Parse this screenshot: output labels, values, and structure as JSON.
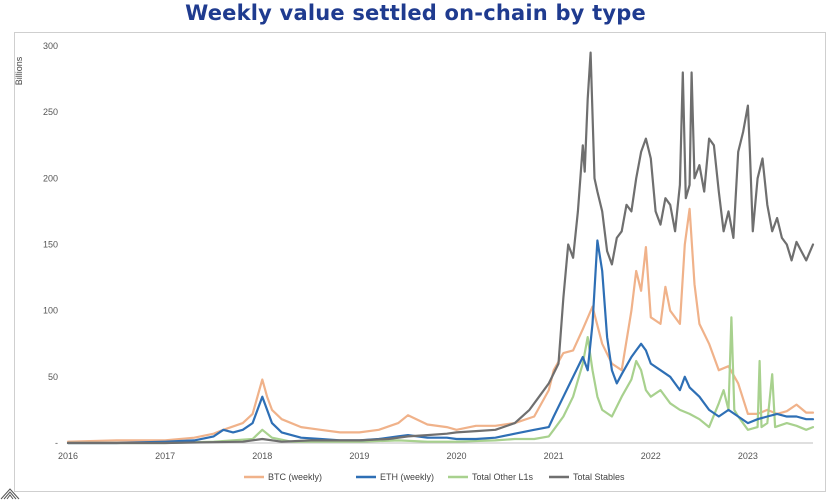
{
  "chart_data": {
    "type": "line",
    "title": "Weekly value settled on-chain by type",
    "xlabel": "",
    "ylabel": "Billions",
    "xlim": [
      2016.0,
      2023.67
    ],
    "ylim": [
      0,
      300
    ],
    "yticks": [
      "300",
      "250",
      "200",
      "150",
      "100",
      "50",
      "-"
    ],
    "ytick_values": [
      300,
      250,
      200,
      150,
      100,
      50,
      0
    ],
    "xticks": [
      "2016",
      "2017",
      "2018",
      "2019",
      "2020",
      "2021",
      "2022",
      "2023"
    ],
    "xtick_values": [
      2016,
      2017,
      2018,
      2019,
      2020,
      2021,
      2022,
      2023
    ],
    "legend_position": "bottom",
    "series": [
      {
        "name": "BTC (weekly)",
        "color": "#f0b28a",
        "points": [
          [
            2016.0,
            1
          ],
          [
            2016.5,
            2
          ],
          [
            2017.0,
            2
          ],
          [
            2017.3,
            4
          ],
          [
            2017.5,
            7
          ],
          [
            2017.6,
            10
          ],
          [
            2017.8,
            15
          ],
          [
            2017.9,
            22
          ],
          [
            2018.0,
            48
          ],
          [
            2018.05,
            35
          ],
          [
            2018.1,
            25
          ],
          [
            2018.2,
            18
          ],
          [
            2018.4,
            12
          ],
          [
            2018.6,
            10
          ],
          [
            2018.8,
            8
          ],
          [
            2019.0,
            8
          ],
          [
            2019.2,
            10
          ],
          [
            2019.4,
            15
          ],
          [
            2019.5,
            21
          ],
          [
            2019.7,
            14
          ],
          [
            2019.9,
            12
          ],
          [
            2020.0,
            10
          ],
          [
            2020.2,
            13
          ],
          [
            2020.4,
            13
          ],
          [
            2020.6,
            15
          ],
          [
            2020.8,
            20
          ],
          [
            2020.95,
            40
          ],
          [
            2021.0,
            55
          ],
          [
            2021.1,
            68
          ],
          [
            2021.2,
            70
          ],
          [
            2021.3,
            86
          ],
          [
            2021.4,
            103
          ],
          [
            2021.5,
            75
          ],
          [
            2021.6,
            60
          ],
          [
            2021.7,
            55
          ],
          [
            2021.8,
            100
          ],
          [
            2021.85,
            130
          ],
          [
            2021.9,
            115
          ],
          [
            2021.95,
            148
          ],
          [
            2022.0,
            95
          ],
          [
            2022.1,
            90
          ],
          [
            2022.15,
            118
          ],
          [
            2022.2,
            100
          ],
          [
            2022.3,
            90
          ],
          [
            2022.35,
            150
          ],
          [
            2022.4,
            177
          ],
          [
            2022.45,
            120
          ],
          [
            2022.5,
            90
          ],
          [
            2022.6,
            75
          ],
          [
            2022.7,
            55
          ],
          [
            2022.8,
            58
          ],
          [
            2022.9,
            45
          ],
          [
            2023.0,
            22
          ],
          [
            2023.1,
            22
          ],
          [
            2023.2,
            25
          ],
          [
            2023.3,
            22
          ],
          [
            2023.4,
            24
          ],
          [
            2023.5,
            29
          ],
          [
            2023.6,
            23
          ],
          [
            2023.67,
            23
          ]
        ]
      },
      {
        "name": "ETH (weekly)",
        "color": "#2e6fb5",
        "points": [
          [
            2016.0,
            0
          ],
          [
            2016.5,
            0
          ],
          [
            2017.0,
            1
          ],
          [
            2017.3,
            2
          ],
          [
            2017.5,
            5
          ],
          [
            2017.6,
            10
          ],
          [
            2017.7,
            8
          ],
          [
            2017.8,
            10
          ],
          [
            2017.9,
            15
          ],
          [
            2018.0,
            35
          ],
          [
            2018.1,
            15
          ],
          [
            2018.2,
            8
          ],
          [
            2018.4,
            4
          ],
          [
            2018.6,
            3
          ],
          [
            2018.8,
            2
          ],
          [
            2019.0,
            2
          ],
          [
            2019.2,
            3
          ],
          [
            2019.4,
            5
          ],
          [
            2019.5,
            6
          ],
          [
            2019.7,
            4
          ],
          [
            2019.9,
            4
          ],
          [
            2020.0,
            3
          ],
          [
            2020.2,
            3
          ],
          [
            2020.4,
            4
          ],
          [
            2020.6,
            7
          ],
          [
            2020.8,
            10
          ],
          [
            2020.95,
            12
          ],
          [
            2021.0,
            20
          ],
          [
            2021.1,
            35
          ],
          [
            2021.2,
            50
          ],
          [
            2021.3,
            65
          ],
          [
            2021.35,
            55
          ],
          [
            2021.4,
            90
          ],
          [
            2021.45,
            153
          ],
          [
            2021.5,
            130
          ],
          [
            2021.55,
            80
          ],
          [
            2021.6,
            55
          ],
          [
            2021.65,
            45
          ],
          [
            2021.7,
            52
          ],
          [
            2021.8,
            65
          ],
          [
            2021.85,
            70
          ],
          [
            2021.9,
            75
          ],
          [
            2021.95,
            70
          ],
          [
            2022.0,
            60
          ],
          [
            2022.1,
            55
          ],
          [
            2022.2,
            50
          ],
          [
            2022.3,
            40
          ],
          [
            2022.35,
            50
          ],
          [
            2022.4,
            42
          ],
          [
            2022.5,
            35
          ],
          [
            2022.6,
            25
          ],
          [
            2022.7,
            20
          ],
          [
            2022.8,
            25
          ],
          [
            2022.9,
            20
          ],
          [
            2023.0,
            15
          ],
          [
            2023.1,
            18
          ],
          [
            2023.2,
            20
          ],
          [
            2023.3,
            22
          ],
          [
            2023.4,
            20
          ],
          [
            2023.5,
            20
          ],
          [
            2023.6,
            18
          ],
          [
            2023.67,
            18
          ]
        ]
      },
      {
        "name": "Total Other L1s",
        "color": "#a8d18e",
        "points": [
          [
            2016.0,
            0
          ],
          [
            2017.0,
            0
          ],
          [
            2017.5,
            1
          ],
          [
            2017.9,
            3
          ],
          [
            2018.0,
            10
          ],
          [
            2018.1,
            4
          ],
          [
            2018.3,
            1
          ],
          [
            2019.0,
            1
          ],
          [
            2019.4,
            2
          ],
          [
            2019.7,
            1
          ],
          [
            2020.0,
            1
          ],
          [
            2020.4,
            2
          ],
          [
            2020.6,
            3
          ],
          [
            2020.8,
            3
          ],
          [
            2020.95,
            5
          ],
          [
            2021.0,
            10
          ],
          [
            2021.1,
            20
          ],
          [
            2021.2,
            35
          ],
          [
            2021.3,
            60
          ],
          [
            2021.35,
            80
          ],
          [
            2021.4,
            55
          ],
          [
            2021.45,
            35
          ],
          [
            2021.5,
            25
          ],
          [
            2021.6,
            20
          ],
          [
            2021.7,
            35
          ],
          [
            2021.8,
            48
          ],
          [
            2021.85,
            62
          ],
          [
            2021.9,
            55
          ],
          [
            2021.95,
            40
          ],
          [
            2022.0,
            35
          ],
          [
            2022.1,
            40
          ],
          [
            2022.2,
            30
          ],
          [
            2022.3,
            25
          ],
          [
            2022.4,
            22
          ],
          [
            2022.5,
            18
          ],
          [
            2022.6,
            12
          ],
          [
            2022.7,
            30
          ],
          [
            2022.75,
            40
          ],
          [
            2022.8,
            25
          ],
          [
            2022.83,
            95
          ],
          [
            2022.86,
            25
          ],
          [
            2022.9,
            20
          ],
          [
            2023.0,
            10
          ],
          [
            2023.1,
            12
          ],
          [
            2023.12,
            62
          ],
          [
            2023.14,
            12
          ],
          [
            2023.2,
            15
          ],
          [
            2023.25,
            52
          ],
          [
            2023.28,
            12
          ],
          [
            2023.4,
            15
          ],
          [
            2023.5,
            13
          ],
          [
            2023.6,
            10
          ],
          [
            2023.67,
            12
          ]
        ]
      },
      {
        "name": "Total Stables",
        "color": "#6f6f6f",
        "points": [
          [
            2016.0,
            0
          ],
          [
            2017.0,
            0
          ],
          [
            2017.8,
            1
          ],
          [
            2018.0,
            3
          ],
          [
            2018.2,
            1
          ],
          [
            2018.5,
            2
          ],
          [
            2018.8,
            2
          ],
          [
            2019.0,
            2
          ],
          [
            2019.3,
            3
          ],
          [
            2019.5,
            5
          ],
          [
            2019.7,
            6
          ],
          [
            2019.9,
            7
          ],
          [
            2020.0,
            8
          ],
          [
            2020.2,
            9
          ],
          [
            2020.4,
            10
          ],
          [
            2020.6,
            15
          ],
          [
            2020.75,
            25
          ],
          [
            2020.85,
            35
          ],
          [
            2020.95,
            45
          ],
          [
            2021.05,
            60
          ],
          [
            2021.1,
            110
          ],
          [
            2021.15,
            150
          ],
          [
            2021.2,
            140
          ],
          [
            2021.25,
            175
          ],
          [
            2021.3,
            225
          ],
          [
            2021.32,
            205
          ],
          [
            2021.35,
            260
          ],
          [
            2021.38,
            295
          ],
          [
            2021.42,
            200
          ],
          [
            2021.45,
            190
          ],
          [
            2021.5,
            175
          ],
          [
            2021.55,
            145
          ],
          [
            2021.6,
            135
          ],
          [
            2021.65,
            155
          ],
          [
            2021.7,
            160
          ],
          [
            2021.75,
            180
          ],
          [
            2021.8,
            175
          ],
          [
            2021.85,
            200
          ],
          [
            2021.9,
            220
          ],
          [
            2021.95,
            230
          ],
          [
            2022.0,
            215
          ],
          [
            2022.05,
            175
          ],
          [
            2022.1,
            165
          ],
          [
            2022.15,
            185
          ],
          [
            2022.2,
            180
          ],
          [
            2022.25,
            160
          ],
          [
            2022.3,
            195
          ],
          [
            2022.33,
            280
          ],
          [
            2022.36,
            185
          ],
          [
            2022.4,
            195
          ],
          [
            2022.42,
            280
          ],
          [
            2022.45,
            200
          ],
          [
            2022.5,
            210
          ],
          [
            2022.55,
            190
          ],
          [
            2022.6,
            230
          ],
          [
            2022.65,
            225
          ],
          [
            2022.7,
            190
          ],
          [
            2022.75,
            160
          ],
          [
            2022.8,
            175
          ],
          [
            2022.85,
            155
          ],
          [
            2022.9,
            220
          ],
          [
            2022.95,
            235
          ],
          [
            2023.0,
            255
          ],
          [
            2023.02,
            220
          ],
          [
            2023.05,
            160
          ],
          [
            2023.1,
            200
          ],
          [
            2023.15,
            215
          ],
          [
            2023.2,
            180
          ],
          [
            2023.25,
            160
          ],
          [
            2023.3,
            170
          ],
          [
            2023.35,
            155
          ],
          [
            2023.4,
            150
          ],
          [
            2023.45,
            138
          ],
          [
            2023.5,
            152
          ],
          [
            2023.55,
            145
          ],
          [
            2023.6,
            138
          ],
          [
            2023.67,
            150
          ]
        ]
      }
    ]
  }
}
